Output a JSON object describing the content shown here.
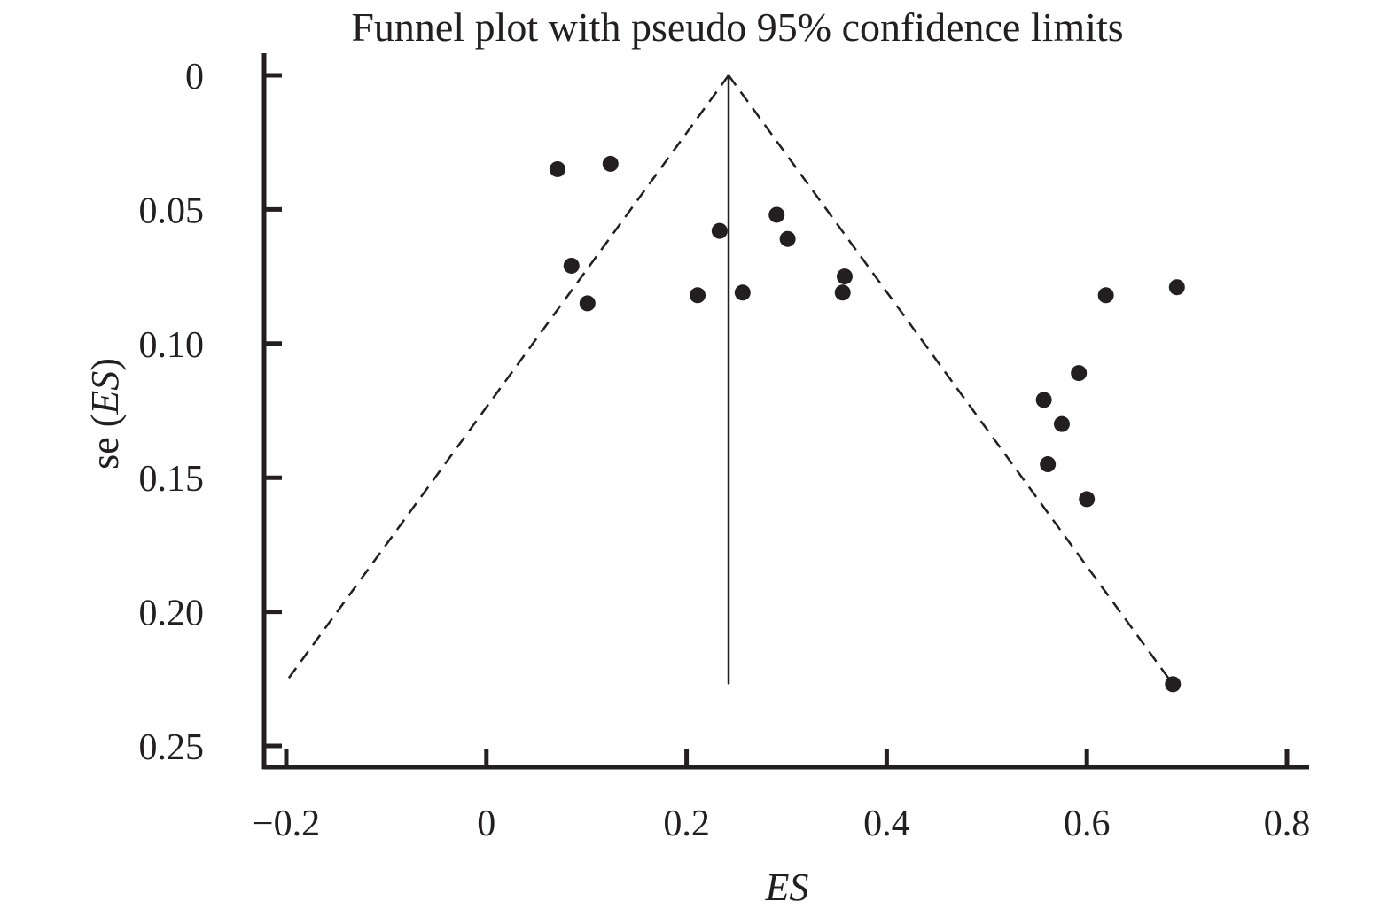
{
  "chart_data": {
    "type": "scatter",
    "title": "Funnel plot with pseudo 95% confidence limits",
    "xlabel": "ES",
    "ylabel": {
      "prefix": "se (",
      "italic": "ES",
      "suffix": ")"
    },
    "xlim": [
      -0.2,
      0.8
    ],
    "ylim": [
      0,
      0.25
    ],
    "y_inverted": true,
    "xticks": [
      {
        "value": -0.2,
        "label": "−0.2"
      },
      {
        "value": 0,
        "label": "0"
      },
      {
        "value": 0.2,
        "label": "0.2"
      },
      {
        "value": 0.4,
        "label": "0.4"
      },
      {
        "value": 0.6,
        "label": "0.6"
      },
      {
        "value": 0.8,
        "label": "0.8"
      }
    ],
    "yticks": [
      {
        "value": 0,
        "label": "0"
      },
      {
        "value": 0.05,
        "label": "0.05"
      },
      {
        "value": 0.1,
        "label": "0.10"
      },
      {
        "value": 0.15,
        "label": "0.15"
      },
      {
        "value": 0.2,
        "label": "0.20"
      },
      {
        "value": 0.25,
        "label": "0.25"
      }
    ],
    "pooled_effect": 0.242,
    "pooled_line_se_range": [
      0,
      0.227
    ],
    "funnel": {
      "apex": [
        0.242,
        0
      ],
      "left_end": [
        -0.202,
        0.227
      ],
      "right_end": [
        0.686,
        0.227
      ],
      "style": "dashed"
    },
    "points": [
      {
        "x": 0.071,
        "y": 0.035
      },
      {
        "x": 0.124,
        "y": 0.033
      },
      {
        "x": 0.085,
        "y": 0.071
      },
      {
        "x": 0.101,
        "y": 0.085
      },
      {
        "x": 0.211,
        "y": 0.082
      },
      {
        "x": 0.233,
        "y": 0.058
      },
      {
        "x": 0.256,
        "y": 0.081
      },
      {
        "x": 0.29,
        "y": 0.052
      },
      {
        "x": 0.301,
        "y": 0.061
      },
      {
        "x": 0.358,
        "y": 0.075
      },
      {
        "x": 0.356,
        "y": 0.081
      },
      {
        "x": 0.557,
        "y": 0.121
      },
      {
        "x": 0.561,
        "y": 0.145
      },
      {
        "x": 0.575,
        "y": 0.13
      },
      {
        "x": 0.592,
        "y": 0.111
      },
      {
        "x": 0.6,
        "y": 0.158
      },
      {
        "x": 0.619,
        "y": 0.082
      },
      {
        "x": 0.69,
        "y": 0.079
      },
      {
        "x": 0.686,
        "y": 0.227
      }
    ],
    "colors": {
      "ink": "#231f20",
      "background": "#ffffff"
    },
    "grid": false,
    "legend": "none"
  }
}
